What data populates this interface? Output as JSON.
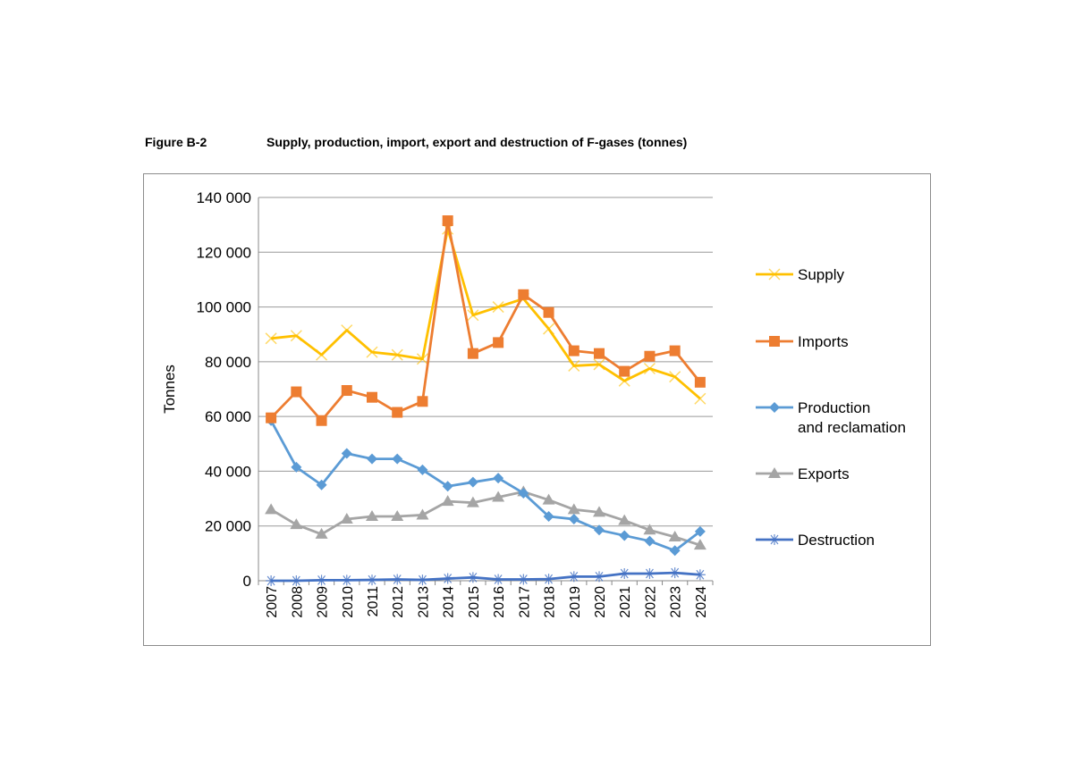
{
  "figure": {
    "label": "Figure B-2",
    "title": "Supply, production, import, export and destruction of F-gases (tonnes)"
  },
  "chart_data": {
    "type": "line",
    "title": "Supply, production, import, export and destruction of F-gases (tonnes)",
    "xlabel": "",
    "ylabel": "Tonnes",
    "ylim": [
      0,
      140000
    ],
    "yticks": [
      0,
      20000,
      40000,
      60000,
      80000,
      100000,
      120000,
      140000
    ],
    "ytick_labels": [
      "0",
      "20 000",
      "40 000",
      "60 000",
      "80 000",
      "100 000",
      "120 000",
      "140 000"
    ],
    "grid": true,
    "legend": "right",
    "categories": [
      "2007",
      "2008",
      "2009",
      "2010",
      "2011",
      "2012",
      "2013",
      "2014",
      "2015",
      "2016",
      "2017",
      "2018",
      "2019",
      "2020",
      "2021",
      "2022",
      "2023",
      "2024"
    ],
    "series": [
      {
        "name": "Supply",
        "color": "#ffc000",
        "marker": "x",
        "values": [
          88500,
          89500,
          82500,
          91500,
          83500,
          82500,
          81000,
          128500,
          97000,
          100000,
          103000,
          92000,
          78500,
          79000,
          73000,
          77500,
          74500,
          66500
        ]
      },
      {
        "name": "Imports",
        "color": "#ed7d31",
        "marker": "square",
        "values": [
          59500,
          69000,
          58500,
          69500,
          67000,
          61500,
          65500,
          131500,
          83000,
          87000,
          104500,
          98000,
          84000,
          83000,
          76500,
          82000,
          84000,
          72500
        ]
      },
      {
        "name": "Production and reclamation",
        "color": "#5b9bd5",
        "marker": "diamond",
        "values": [
          58500,
          41500,
          35000,
          46500,
          44500,
          44500,
          40500,
          34500,
          36000,
          37500,
          32000,
          23500,
          22500,
          18500,
          16500,
          14500,
          11000,
          18000
        ]
      },
      {
        "name": "Exports",
        "color": "#a5a5a5",
        "marker": "triangle",
        "values": [
          26000,
          20500,
          17000,
          22500,
          23500,
          23500,
          24000,
          29000,
          28500,
          30500,
          32500,
          29500,
          26000,
          25000,
          22000,
          18500,
          16000,
          13000
        ]
      },
      {
        "name": "Destruction",
        "color": "#4472c4",
        "marker": "asterisk",
        "values": [
          0,
          0,
          200,
          200,
          300,
          500,
          300,
          800,
          1200,
          500,
          500,
          600,
          1500,
          1500,
          2600,
          2600,
          2900,
          2200
        ]
      }
    ]
  }
}
